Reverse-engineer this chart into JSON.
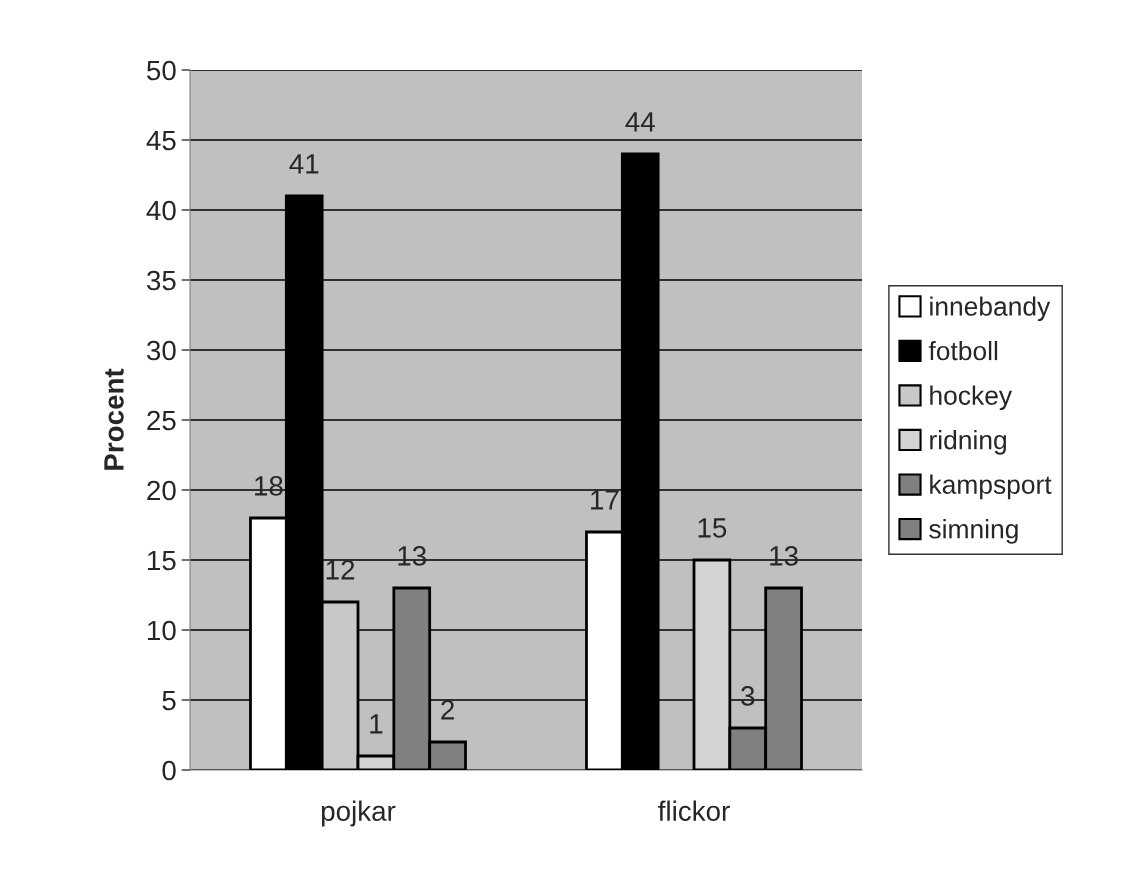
{
  "chart_data": {
    "type": "bar",
    "ylabel": "Procent",
    "categories": [
      "pojkar",
      "flickor"
    ],
    "series": [
      {
        "name": "innebandy",
        "color": "#ffffff",
        "values": [
          18,
          17
        ]
      },
      {
        "name": "fotboll",
        "color": "#000000",
        "values": [
          41,
          44
        ]
      },
      {
        "name": "hockey",
        "color": "#c8c8c8",
        "values": [
          12,
          null
        ]
      },
      {
        "name": "ridning",
        "color": "#d4d4d4",
        "values": [
          1,
          15
        ]
      },
      {
        "name": "kampsport",
        "color": "#808080",
        "values": [
          13,
          3
        ]
      },
      {
        "name": "simning",
        "color": "#808080",
        "values": [
          2,
          13
        ]
      }
    ],
    "ylim": [
      0,
      50
    ],
    "yticks": [
      0,
      5,
      10,
      15,
      20,
      25,
      30,
      35,
      40,
      45,
      50
    ],
    "grid": "y",
    "legend": "right",
    "data_labels": true
  }
}
